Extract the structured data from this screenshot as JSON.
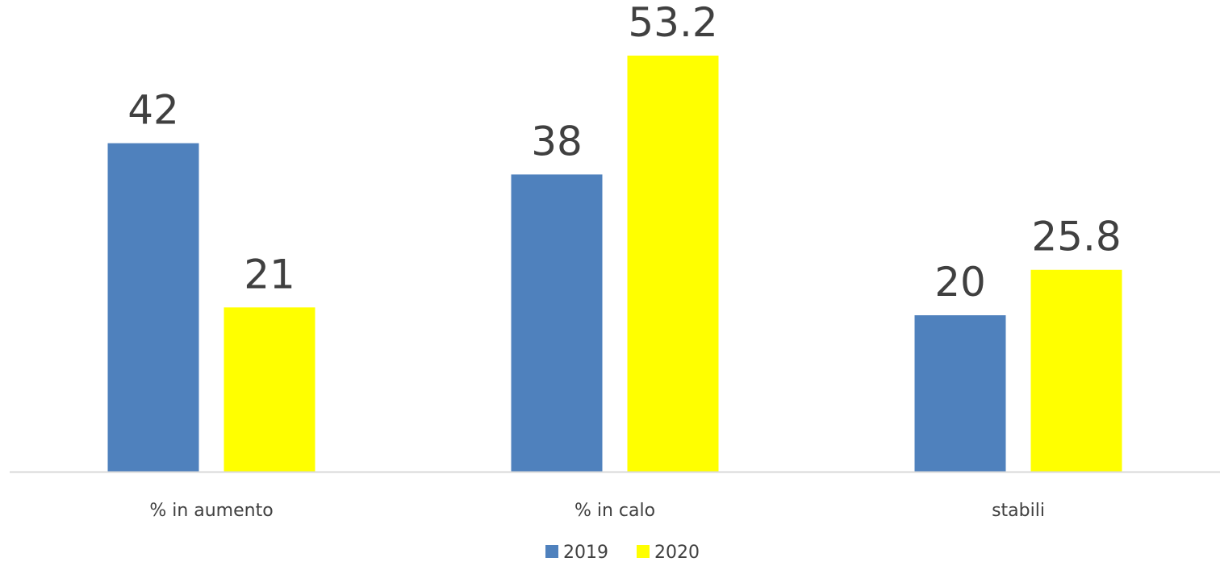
{
  "chart_data": {
    "type": "bar",
    "categories": [
      "% in aumento",
      "% in calo",
      "stabili"
    ],
    "series": [
      {
        "name": "2019",
        "values": [
          42,
          38,
          20
        ],
        "value_labels": [
          "42",
          "38",
          "20"
        ],
        "color": "#4f81bd"
      },
      {
        "name": "2020",
        "values": [
          21,
          53.2,
          25.8
        ],
        "value_labels": [
          "21",
          "53.2",
          "25.8"
        ],
        "color": "#ffff00"
      }
    ],
    "ylim": [
      0,
      55
    ],
    "grid": false,
    "legend_position": "bottom",
    "axis_color": "#d9d9d9"
  }
}
